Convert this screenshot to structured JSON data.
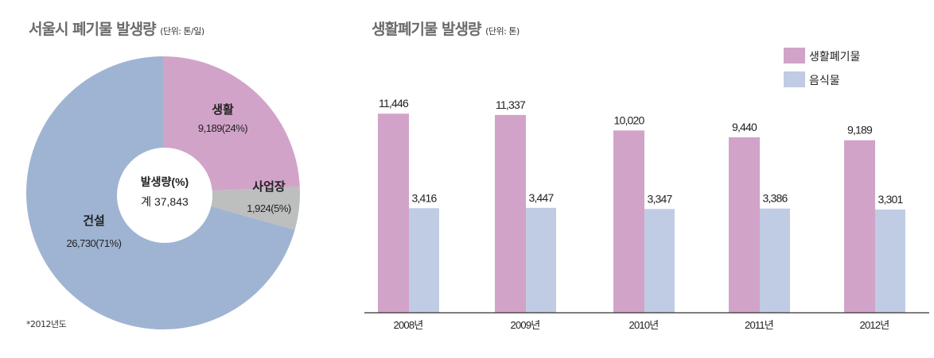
{
  "left": {
    "title": "서울시 폐기물 발생량",
    "unit": "(단위: 톤/일)",
    "note": "*2012년도",
    "center_label": "발생량(%)",
    "center_total": "계 37,843"
  },
  "right": {
    "title": "생활폐기물 발생량",
    "unit": "(단위: 톤)"
  },
  "chart_data": [
    {
      "type": "pie",
      "title": "서울시 폐기물 발생량",
      "unit": "톤/일",
      "slices": [
        {
          "name": "생활",
          "value": 9189,
          "percent": 24,
          "label": "9,189(24%)",
          "color": "#d2a3c8"
        },
        {
          "name": "사업장",
          "value": 1924,
          "percent": 5,
          "label": "1,924(5%)",
          "color": "#bdbebe"
        },
        {
          "name": "건설",
          "value": 26730,
          "percent": 71,
          "label": "26,730(71%)",
          "color": "#9fb4d3"
        }
      ]
    },
    {
      "type": "bar",
      "title": "생활폐기물 발생량",
      "unit": "톤",
      "categories": [
        "2008년",
        "2009년",
        "2010년",
        "2011년",
        "2012년"
      ],
      "series": [
        {
          "name": "생활폐기물",
          "color": "#d2a3c8",
          "values": [
            11446,
            11337,
            10020,
            9440,
            9189
          ],
          "labels": [
            "11,446",
            "11,337",
            "10,020",
            "9,440",
            "9,189"
          ]
        },
        {
          "name": "음식물",
          "color": "#c0cce4",
          "values": [
            3416,
            3447,
            3347,
            3386,
            3301
          ],
          "labels": [
            "3,416",
            "3,447",
            "3,347",
            "3,386",
            "3,301"
          ]
        }
      ],
      "ylim": [
        -5470,
        12000
      ],
      "grid": false,
      "legend": "top-right"
    }
  ]
}
